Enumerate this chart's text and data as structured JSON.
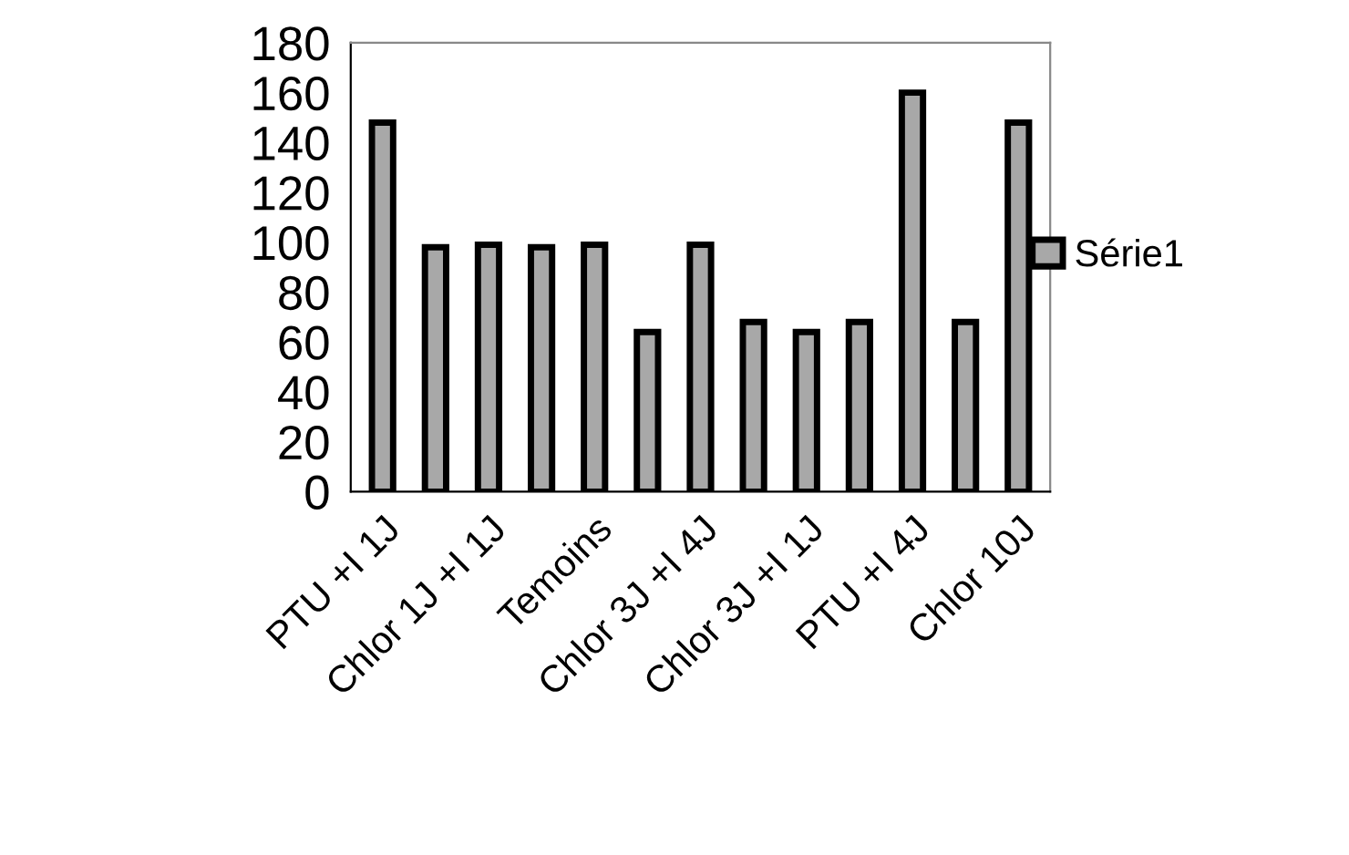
{
  "chart_data": {
    "type": "bar",
    "categories": [
      "PTU +I 1J",
      null,
      "Chlor 1J +I 1J",
      null,
      "Temoins",
      null,
      "Chlor 3J +I 4J",
      null,
      "Chlor 3J +I 1J",
      null,
      "PTU +I 4J",
      null,
      "Chlor 10J"
    ],
    "series": [
      {
        "name": "Série1",
        "color": "#a8a8a8",
        "values": [
          148,
          98,
          99,
          98,
          99,
          64,
          99,
          68,
          64,
          68,
          160,
          68,
          148
        ]
      }
    ],
    "ylim": [
      0,
      180
    ],
    "yticks": [
      0,
      20,
      40,
      60,
      80,
      100,
      120,
      140,
      160,
      180
    ],
    "grid": false,
    "legend": "right"
  }
}
